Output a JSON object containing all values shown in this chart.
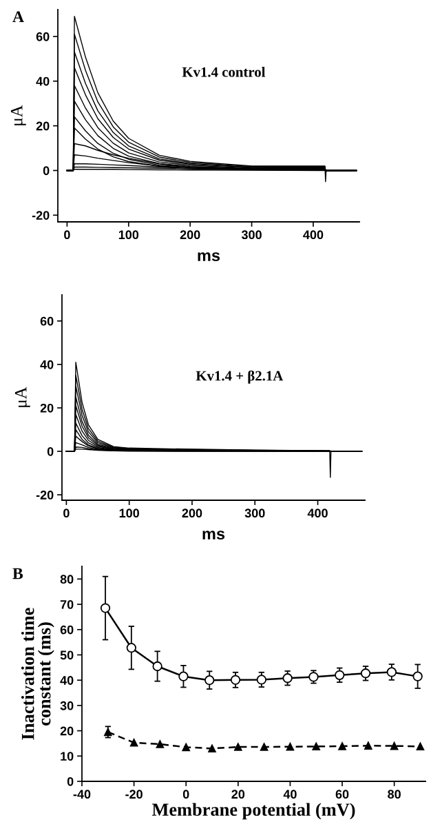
{
  "chart_data": [
    {
      "type": "line",
      "title": "A",
      "ylabel": "μA",
      "xlabel": "ms",
      "annotations": [
        "Kv1.4 control"
      ],
      "xlim": [
        -15,
        475
      ],
      "ylim": [
        -23,
        72
      ],
      "xticks": [
        0,
        100,
        200,
        300,
        400
      ],
      "yticks": [
        -20,
        0,
        20,
        40,
        60
      ],
      "marker": "none",
      "line_style": "solid",
      "grid": false,
      "x": [
        0,
        10,
        12,
        30,
        50,
        75,
        100,
        150,
        200,
        300,
        419,
        420,
        421,
        470
      ],
      "series": [
        {
          "color": "#000000",
          "values": [
            0,
            0,
            69,
            50.7,
            34.8,
            22.1,
            14.4,
            6.8,
            4.1,
            2.0,
            2.0,
            -5,
            0,
            0
          ]
        },
        {
          "color": "#000000",
          "values": [
            0,
            0,
            61,
            44.8,
            30.7,
            19.5,
            12.7,
            6.0,
            3.6,
            1.8,
            1.8,
            0,
            0,
            0
          ]
        },
        {
          "color": "#000000",
          "values": [
            0,
            0,
            53,
            38.9,
            26.7,
            17.0,
            11.0,
            5.2,
            3.1,
            1.5,
            1.6,
            0,
            0,
            0
          ]
        },
        {
          "color": "#000000",
          "values": [
            0,
            0,
            46,
            33.8,
            23.2,
            14.8,
            9.6,
            4.6,
            2.8,
            1.4,
            1.4,
            0,
            0,
            0
          ]
        },
        {
          "color": "#000000",
          "values": [
            0,
            0,
            38,
            27.9,
            19.2,
            12.2,
            7.9,
            3.8,
            2.3,
            1.1,
            1.2,
            0,
            0,
            0
          ]
        },
        {
          "color": "#000000",
          "values": [
            0,
            0,
            31,
            22.7,
            15.6,
            9.9,
            6.4,
            3.1,
            1.8,
            0.9,
            1.0,
            0,
            0,
            0
          ]
        },
        {
          "color": "#000000",
          "values": [
            0,
            0,
            24,
            17.7,
            12.1,
            7.7,
            5.0,
            2.4,
            1.5,
            0.7,
            0.8,
            0,
            0,
            0
          ]
        },
        {
          "color": "#000000",
          "values": [
            0,
            0,
            19,
            14.0,
            9.6,
            6.1,
            4.0,
            1.9,
            1.1,
            0.6,
            0.6,
            0,
            0,
            0
          ]
        },
        {
          "color": "#000000",
          "values": [
            0,
            0,
            12,
            11,
            9,
            7,
            5.5,
            3,
            1.5,
            0.5,
            0.4,
            0,
            0,
            0
          ]
        },
        {
          "color": "#000000",
          "values": [
            0,
            0,
            7,
            6.5,
            5.5,
            4.5,
            3.5,
            2,
            1,
            0.4,
            0.3,
            0,
            0,
            0
          ]
        },
        {
          "color": "#000000",
          "values": [
            0,
            0,
            3,
            3,
            2.8,
            2.5,
            2.2,
            1.5,
            1,
            0.4,
            0.2,
            0,
            0,
            0
          ]
        },
        {
          "color": "#000000",
          "values": [
            0,
            0,
            1.5,
            1.5,
            1.4,
            1.3,
            1.2,
            1,
            0.7,
            0.3,
            0.1,
            0,
            0,
            0
          ]
        },
        {
          "color": "#000000",
          "values": [
            0,
            0,
            0.5,
            0.5,
            0.5,
            0.5,
            0.4,
            0.3,
            0.2,
            0.1,
            0,
            0,
            0,
            0
          ]
        }
      ]
    },
    {
      "type": "line",
      "ylabel": "μA",
      "xlabel": "ms",
      "annotations": [
        "Kv1.4 + β2.1A"
      ],
      "xlim": [
        -7,
        475
      ],
      "ylim": [
        -22.5,
        72
      ],
      "xticks": [
        0,
        100,
        200,
        300,
        400
      ],
      "yticks": [
        -20,
        0,
        20,
        40,
        60
      ],
      "marker": "none",
      "line_style": "solid",
      "grid": false,
      "x": [
        0,
        13,
        15,
        25,
        35,
        50,
        75,
        100,
        150,
        300,
        419,
        420,
        421,
        470
      ],
      "series": [
        {
          "color": "#000000",
          "values": [
            0,
            0,
            41,
            22.5,
            12.3,
            5.5,
            2.2,
            1.5,
            1.2,
            0.6,
            0.3,
            -12,
            0,
            0
          ]
        },
        {
          "color": "#000000",
          "values": [
            0,
            0,
            35,
            19.3,
            10.5,
            4.7,
            1.9,
            1.3,
            1.0,
            0.5,
            0.3,
            0,
            0,
            0
          ]
        },
        {
          "color": "#000000",
          "values": [
            0,
            0,
            30,
            16.5,
            9.0,
            4.0,
            1.6,
            1.1,
            0.9,
            0.4,
            0.2,
            0,
            0,
            0
          ]
        },
        {
          "color": "#000000",
          "values": [
            0,
            0,
            25,
            13.7,
            7.5,
            3.3,
            1.3,
            0.9,
            0.7,
            0.4,
            0.2,
            0,
            0,
            0
          ]
        },
        {
          "color": "#000000",
          "values": [
            0,
            0,
            21,
            11.6,
            6.3,
            2.8,
            1.1,
            0.8,
            0.6,
            0.3,
            0.2,
            0,
            0,
            0
          ]
        },
        {
          "color": "#000000",
          "values": [
            0,
            0,
            17,
            9.3,
            5.1,
            2.3,
            0.9,
            0.6,
            0.5,
            0.2,
            0.1,
            0,
            0,
            0
          ]
        },
        {
          "color": "#000000",
          "values": [
            0,
            0,
            13,
            7.2,
            3.9,
            1.8,
            0.7,
            0.5,
            0.4,
            0.2,
            0.1,
            0,
            0,
            0
          ]
        },
        {
          "color": "#000000",
          "values": [
            0,
            0,
            10,
            5.5,
            3.0,
            1.4,
            0.6,
            0.4,
            0.3,
            0.2,
            0.1,
            0,
            0,
            0
          ]
        },
        {
          "color": "#000000",
          "values": [
            0,
            0,
            7,
            4.5,
            2.5,
            1.2,
            0.5,
            0.3,
            0.2,
            0.1,
            0.1,
            0,
            0,
            0
          ]
        },
        {
          "color": "#000000",
          "values": [
            0,
            0,
            4,
            3,
            1.8,
            0.9,
            0.4,
            0.2,
            0.2,
            0.1,
            0,
            0,
            0,
            0
          ]
        },
        {
          "color": "#000000",
          "values": [
            0,
            0,
            2,
            1.8,
            1.2,
            0.6,
            0.3,
            0.2,
            0.1,
            0.1,
            0,
            0,
            0,
            0
          ]
        },
        {
          "color": "#000000",
          "values": [
            0,
            0,
            1,
            1,
            0.8,
            0.5,
            0.2,
            0.1,
            0.1,
            0,
            0,
            0,
            0,
            0
          ]
        }
      ]
    },
    {
      "type": "line",
      "title": "B",
      "ylabel": "Inactivation time\nconstant (ms)",
      "xlabel": "Membrane potential (mV)",
      "xlim": [
        -40,
        92
      ],
      "ylim": [
        0,
        85
      ],
      "xticks": [
        -40,
        -20,
        0,
        20,
        40,
        60,
        80
      ],
      "yticks": [
        0,
        10,
        20,
        30,
        40,
        50,
        60,
        70,
        80
      ],
      "grid": false,
      "series": [
        {
          "color": "#000000",
          "marker": "circle",
          "line_style": "solid",
          "x": [
            -31,
            -21,
            -11,
            -1,
            9,
            19,
            29,
            39,
            49,
            59,
            69,
            79,
            89
          ],
          "values": [
            68.5,
            52.8,
            45.5,
            41.5,
            40,
            40.1,
            40.2,
            40.8,
            41.3,
            42,
            42.7,
            43.2,
            41.5
          ],
          "errors": [
            12.5,
            8.5,
            5.9,
            4.3,
            3.5,
            3,
            2.9,
            2.8,
            2.5,
            2.8,
            2.8,
            3.1,
            4.7
          ]
        },
        {
          "color": "#000000",
          "marker": "triangle",
          "line_style": "dashed",
          "x": [
            -30,
            -20,
            -10,
            0,
            10,
            20,
            30,
            40,
            50,
            60,
            70,
            80,
            90
          ],
          "values": [
            19.5,
            15.3,
            14.7,
            13.5,
            13,
            13.6,
            13.6,
            13.7,
            13.8,
            13.9,
            14.1,
            14,
            13.8
          ],
          "errors": [
            2.2,
            null,
            null,
            null,
            null,
            null,
            null,
            null,
            null,
            null,
            null,
            null,
            null
          ]
        }
      ]
    }
  ]
}
